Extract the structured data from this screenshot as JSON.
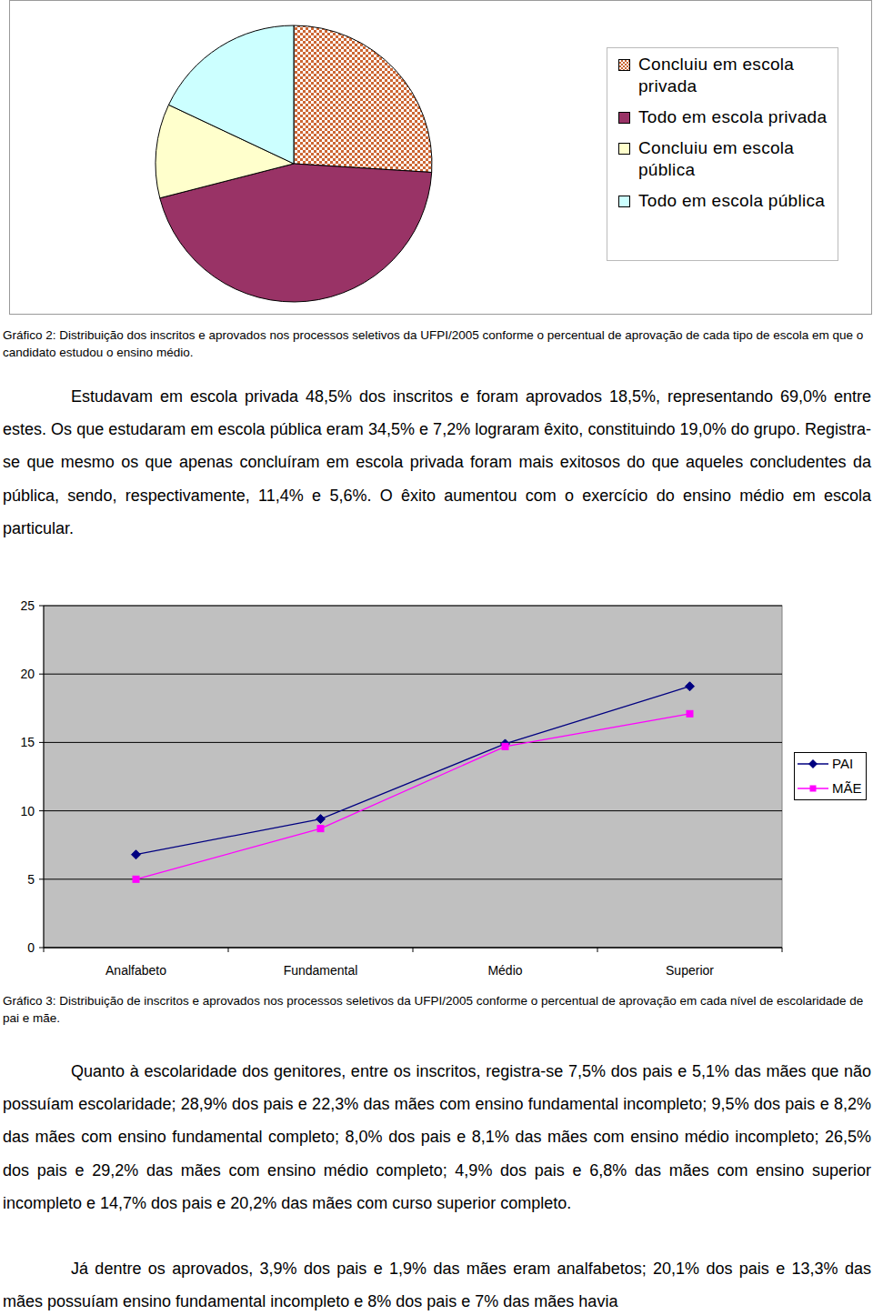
{
  "chart_data": [
    {
      "type": "pie",
      "title": "Gráfico 2: Distribuição dos inscritos e aprovados nos processos seletivos da UFPI/2005 conforme o percentual de aprovação de cada tipo de escola em que o candidato estudou o ensino médio.",
      "categories": [
        "Concluiu em escola privada",
        "Todo em escola privada",
        "Concluiu em escola pública",
        "Todo em escola pública"
      ],
      "values": [
        26,
        45,
        11,
        18
      ],
      "colors": [
        "#cc6633",
        "#993366",
        "#ffffcc",
        "#ccffff"
      ],
      "legend": "right"
    },
    {
      "type": "line",
      "title": "Gráfico 3: Distribuição de inscritos e aprovados nos processos seletivos da UFPI/2005 conforme o percentual de aprovação em cada nível de escolaridade de pai e mãe.",
      "categories": [
        "Analfabeto",
        "Fundamental",
        "Médio",
        "Superior"
      ],
      "series": [
        {
          "name": "PAI",
          "color": "#000080",
          "marker": "diamond",
          "values": [
            6.8,
            9.4,
            14.9,
            19.1
          ]
        },
        {
          "name": "MÃE",
          "color": "#ff00ff",
          "marker": "square",
          "values": [
            5.0,
            8.7,
            14.7,
            17.1
          ]
        }
      ],
      "ylim": [
        0,
        25
      ],
      "yticks": [
        0,
        5,
        10,
        15,
        20,
        25
      ],
      "grid": true,
      "legend": "right"
    }
  ],
  "document": {
    "paragraphs": [
      "Estudavam em escola privada 48,5% dos inscritos e foram aprovados 18,5%, representando 69,0% entre estes.  Os que estudaram em escola pública eram 34,5% e 7,2% lograram êxito, constituindo 19,0% do grupo. Registra-se que mesmo os que apenas concluíram em escola privada foram mais exitosos do que aqueles concludentes da pública, sendo, respectivamente, 11,4% e 5,6%. O êxito aumentou com o exercício do ensino médio em escola particular.",
      "Quanto à escolaridade dos genitores, entre os inscritos, registra-se 7,5% dos pais e 5,1% das mães que não possuíam escolaridade; 28,9% dos pais e 22,3% das mães com ensino fundamental incompleto; 9,5% dos pais e 8,2% das mães com ensino fundamental completo; 8,0% dos pais e 8,1% das mães com ensino médio incompleto; 26,5% dos pais e 29,2% das mães com ensino médio completo; 4,9% dos pais e 6,8% das mães com ensino superior incompleto e 14,7% dos pais e 20,2% das mães com curso superior completo.",
      "Já dentre os aprovados, 3,9% dos pais e 1,9% das mães eram analfabetos; 20,1% dos pais e 13,3% das mães possuíam ensino fundamental incompleto e 8% dos pais e 7% das mães havia"
    ]
  }
}
